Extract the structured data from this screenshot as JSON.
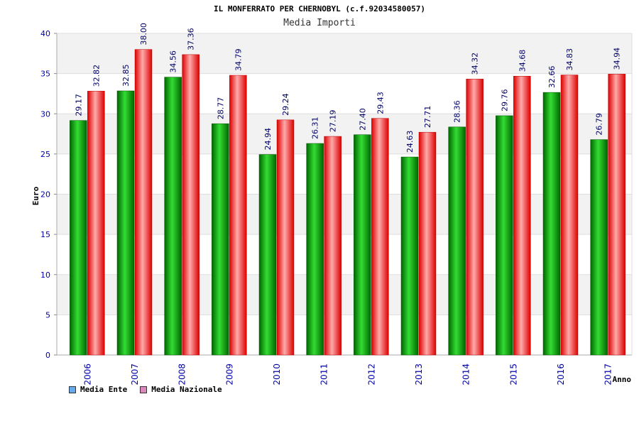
{
  "chart_data": {
    "type": "bar",
    "title": "IL MONFERRATO PER CHERNOBYL (c.f.92034580057)",
    "subtitle": "Media Importi",
    "xlabel": "Anno",
    "ylabel": "Euro",
    "ylim": [
      0,
      40
    ],
    "yticks": [
      "0",
      "5",
      "10",
      "15",
      "20",
      "25",
      "30",
      "35",
      "40"
    ],
    "categories": [
      "2006",
      "2007",
      "2008",
      "2009",
      "2010",
      "2011",
      "2012",
      "2013",
      "2014",
      "2015",
      "2016",
      "2017"
    ],
    "series": [
      {
        "name": "Media Ente",
        "values": [
          29.17,
          32.85,
          34.56,
          28.77,
          24.94,
          26.31,
          27.4,
          24.63,
          28.36,
          29.76,
          32.66,
          26.79
        ],
        "labels": [
          "29.17",
          "32.85",
          "34.56",
          "28.77",
          "24.94",
          "26.31",
          "27.40",
          "24.63",
          "28.36",
          "29.76",
          "32.66",
          "26.79"
        ]
      },
      {
        "name": "Media Nazionale",
        "values": [
          32.82,
          38.0,
          37.36,
          34.79,
          29.24,
          27.19,
          29.43,
          27.71,
          34.32,
          34.68,
          34.83,
          34.94
        ],
        "labels": [
          "32.82",
          "38.00",
          "37.36",
          "34.79",
          "29.24",
          "27.19",
          "29.43",
          "27.71",
          "34.32",
          "34.68",
          "34.83",
          "34.94"
        ]
      }
    ],
    "legend": "bottom-left"
  },
  "colors": {
    "ente_dark": "#006600",
    "ente_light": "#33dd33",
    "naz_dark": "#dd0000",
    "naz_light": "#ffaaaa",
    "legend_ente": "#66aaee",
    "legend_naz": "#dd88bb",
    "band": "#f2f2f2",
    "axis_text": "#0000aa",
    "label_text": "#000066"
  }
}
